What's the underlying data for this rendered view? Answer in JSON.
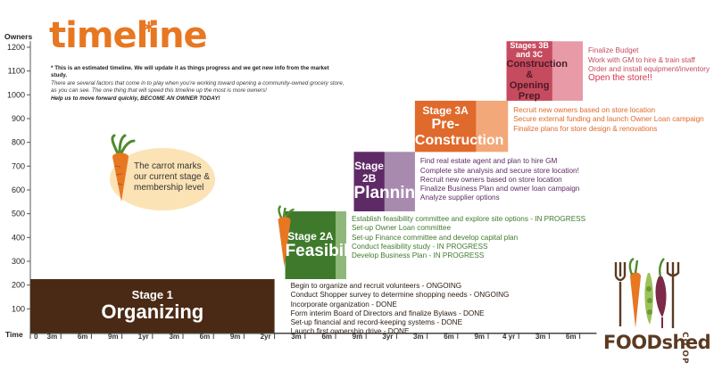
{
  "title": "timeline",
  "title_mark": "*",
  "note": {
    "line1": "* This is an estimated timeline. We will update it as things progress and we get new info from the market study.",
    "line2": "There are several factors that come in to play when you're working toward opening a community-owned grocery store, as you can see. The one thing that will speed this timeline up the most is more owners!",
    "line3": "Help us to move forward quickly, BECOME AN OWNER TODAY!"
  },
  "carrot_note": "The carrot marks our current stage & membership level",
  "brand": {
    "name": "FOODshed",
    "suffix": "CO OP"
  },
  "colors": {
    "organizing": "#4a2a14",
    "feasibility": "#3f7a2c",
    "feasibility_light": "#8fb77a",
    "planning": "#5e2a66",
    "planning_light": "#a78aae",
    "preconstruction": "#e06a2c",
    "preconstruction_light": "#f2a878",
    "construction": "#c64b5e",
    "construction_light": "#e89aa6",
    "carrot": "#e87722",
    "leaf": "#4f8a2e"
  },
  "chart_data": {
    "type": "timeline",
    "ylabel": "Owners",
    "xlabel": "Time",
    "ylim": [
      0,
      1250
    ],
    "yticks": [
      100,
      200,
      300,
      400,
      500,
      600,
      700,
      800,
      900,
      1000,
      1100,
      1200
    ],
    "xticks": [
      "0",
      "3m",
      "6m",
      "9m",
      "1yr",
      "3m",
      "6m",
      "9m",
      "2yr",
      "3m",
      "6m",
      "9m",
      "3yr",
      "3m",
      "6m",
      "9m",
      "4 yr",
      "3m",
      "6m"
    ],
    "current_stage": "Stage 2A",
    "stages": [
      {
        "id": "organizing",
        "name": "Stage 1",
        "subtitle": "Organizing",
        "x_start": 0,
        "x_end": 8,
        "x_solid_end": 8,
        "y_start": 0,
        "y_end": 225,
        "tasks": [
          "Begin to organize and recruit volunteers - ONGOING",
          "Conduct Shopper survey to determine shopping needs - ONGOING",
          "Incorporate organization - DONE",
          "Form interim Board of Directors and finalize Bylaws - DONE",
          "Set-up financial and record-keeping systems - DONE",
          "Launch first ownership drive - DONE"
        ]
      },
      {
        "id": "feasibility",
        "name": "Stage 2A",
        "subtitle": "Feasibility",
        "x_start": 8.35,
        "x_end": 10.35,
        "x_solid_end": 10,
        "y_start": 225,
        "y_end": 510,
        "tasks": [
          "Establish feasibility committee and explore site options - IN PROGRESS",
          "Set-up Owner Loan committee",
          "Set-up Finance committee and develop capital plan",
          "Conduct feasibility study - IN PROGRESS",
          "Develop Business Plan - IN PROGRESS"
        ]
      },
      {
        "id": "planning",
        "name": "Stage 2B",
        "subtitle": "Planning",
        "x_start": 10.6,
        "x_end": 12.6,
        "x_solid_end": 11.6,
        "y_start": 510,
        "y_end": 760,
        "tasks": [
          "Find real estate agent and plan to hire GM",
          "Complete site analysis and secure store location!",
          "Recruit new owners based on store location",
          "Finalize Business Plan and owner loan campaign",
          "Analyze supplier options"
        ]
      },
      {
        "id": "preconstruction",
        "name": "Stage 3A",
        "subtitle": "Pre-Construction",
        "x_start": 12.6,
        "x_end": 15.65,
        "x_solid_end": 14.6,
        "y_start": 760,
        "y_end": 975,
        "tasks": [
          "Recruit new owners based on store location",
          "Secure external funding and launch Owner Loan campaign",
          "Finalize plans for store design & renovations"
        ]
      },
      {
        "id": "construction",
        "name": "Stages 3B and 3C",
        "subtitle": "Construction & Opening Prep",
        "x_start": 15.6,
        "x_end": 18.1,
        "x_solid_end": 17.1,
        "y_start": 975,
        "y_end": 1225,
        "tasks": [
          "Finalize Budget",
          "Work with GM to hire & train staff",
          "Order and install equipment/inventory",
          "Open the store!!"
        ],
        "highlight_last": true
      }
    ]
  }
}
